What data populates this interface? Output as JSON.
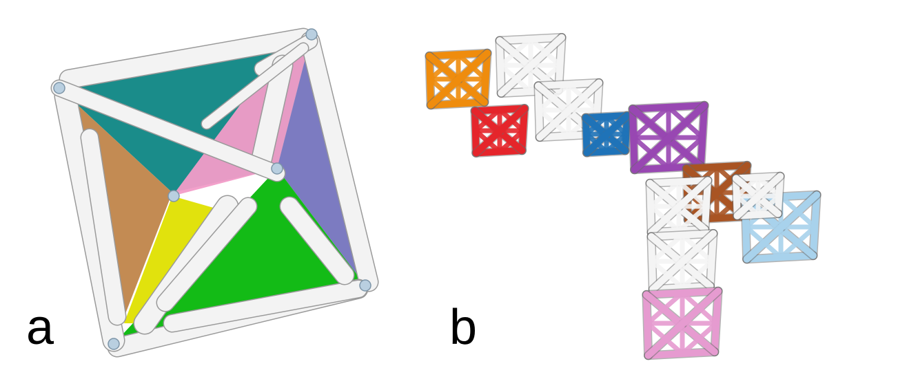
{
  "panels": [
    {
      "label": "a"
    },
    {
      "label": "b"
    }
  ],
  "colors": {
    "teal": "#0e8684",
    "pink": "#f29cc8",
    "violet": "#7574be",
    "brown": "#c0854a",
    "yellow": "#dfe000",
    "green": "#06b70a",
    "strut": "#f3f3f3",
    "strut_edge": "#9a9a9a",
    "node": "#b9cfe0",
    "orange": "#ef8c0d",
    "red": "#e5252b",
    "blue": "#1f73b8",
    "purple": "#9847b2",
    "rust": "#a95423",
    "lightblue": "#a8d2ec",
    "rose": "#e69bd0",
    "white_module": "#f4f4f4"
  }
}
